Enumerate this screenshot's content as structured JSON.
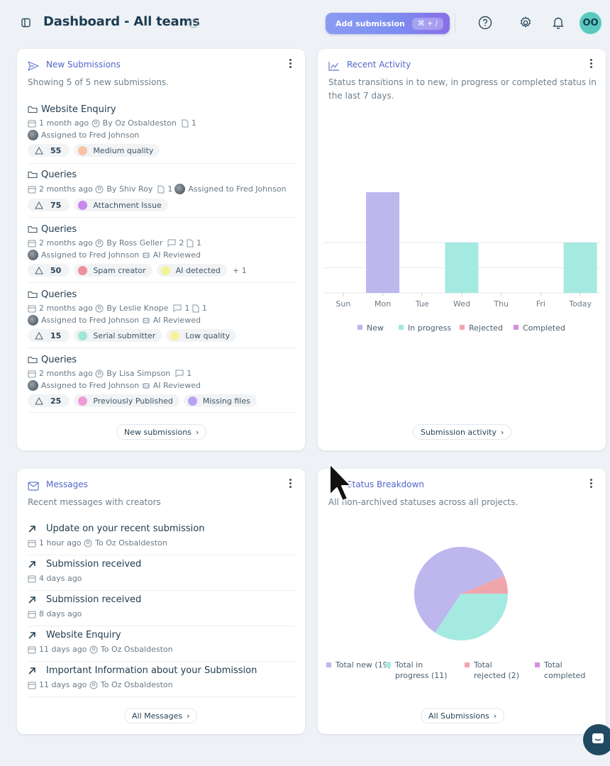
{
  "header": {
    "title": "Dashboard - All teams",
    "add_label": "Add submission",
    "add_shortcut": "⌘ + /",
    "avatar_initials": "OO"
  },
  "new_submissions": {
    "title": "New Submissions",
    "subtitle": "Showing 5 of 5 new submissions.",
    "footer": "New submissions",
    "items": [
      {
        "title": "Website Enquiry",
        "time": "1 month ago",
        "by": "By Oz Osbaldeston",
        "files": "1",
        "assigned": "Assigned to Fred Johnson",
        "score": "55",
        "chips": [
          "Medium quality"
        ]
      },
      {
        "title": "Queries",
        "time": "2 months ago",
        "by": "By Shiv Roy",
        "files": "1",
        "assigned": "Assigned to Fred Johnson",
        "score": "75",
        "chips": [
          "Attachment Issue"
        ]
      },
      {
        "title": "Queries",
        "time": "2 months ago",
        "by": "By Ross Geller",
        "comments": "2",
        "files": "1",
        "assigned": "Assigned to Fred Johnson",
        "ai": "AI Reviewed",
        "score": "50",
        "chips": [
          "Spam creator",
          "AI detected"
        ],
        "more": "+ 1"
      },
      {
        "title": "Queries",
        "time": "2 months ago",
        "by": "By Leslie Knope",
        "comments": "1",
        "files": "1",
        "assigned": "Assigned to Fred Johnson",
        "ai": "AI Reviewed",
        "score": "15",
        "chips": [
          "Serial submitter",
          "Low quality"
        ]
      },
      {
        "title": "Queries",
        "time": "2 months ago",
        "by": "By Lisa Simpson",
        "comments": "1",
        "assigned": "Assigned to Fred Johnson",
        "ai": "AI Reviewed",
        "score": "25",
        "chips": [
          "Previously Published",
          "Missing files"
        ]
      }
    ]
  },
  "recent_activity": {
    "title": "Recent Activity",
    "subtitle": "Status transitions in to new, in progress or completed status in the last 7 days.",
    "footer": "Submission activity"
  },
  "chart_data": [
    {
      "type": "bar",
      "categories": [
        "Sun",
        "Mon",
        "Tue",
        "Wed",
        "Thu",
        "Fri",
        "Today"
      ],
      "series": [
        {
          "name": "New",
          "values": [
            0,
            2,
            0,
            0,
            0,
            0,
            0
          ],
          "color": "#bdb7ee"
        },
        {
          "name": "In progress",
          "values": [
            0,
            0,
            0,
            1,
            0,
            0,
            1
          ],
          "color": "#a4eae0"
        },
        {
          "name": "Rejected",
          "values": [
            0,
            0,
            0,
            0,
            0,
            0,
            0
          ],
          "color": "#f0a5ad"
        },
        {
          "name": "Completed",
          "values": [
            0,
            0,
            0,
            0,
            0,
            0,
            0
          ],
          "color": "#d68fe0"
        }
      ],
      "ylim": [
        0,
        2
      ],
      "grid": true,
      "legend": "bottom"
    },
    {
      "type": "pie",
      "title": "Status Breakdown",
      "labels": [
        "Total new (19)",
        "Total in progress (11)",
        "Total rejected (2)",
        "Total completed"
      ],
      "values": [
        19,
        11,
        2,
        0
      ],
      "colors": [
        "#bdb7ee",
        "#a4eae0",
        "#f0a5ad",
        "#d68fe0"
      ],
      "legend": "bottom"
    }
  ],
  "messages": {
    "title": "Messages",
    "subtitle": "Recent messages with creators",
    "footer": "All Messages",
    "items": [
      {
        "title": "Update on your recent submission",
        "time": "1 hour ago",
        "to": "To Oz Osbaldeston"
      },
      {
        "title": "Submission received",
        "time": "4 days ago"
      },
      {
        "title": "Submission received",
        "time": "8 days ago"
      },
      {
        "title": "Website Enquiry",
        "time": "11 days ago",
        "to": "To Oz Osbaldeston"
      },
      {
        "title": "Important Information about your Submission",
        "time": "11 days ago",
        "to": "To Oz Osbaldeston"
      }
    ]
  },
  "status_breakdown": {
    "title": "Status Breakdown",
    "subtitle": "All non-archived statuses across all projects.",
    "footer": "All Submissions"
  },
  "colors": {
    "accent": "#5266c8",
    "chip_orange": "#f7c3a3",
    "chip_purple": "#c987ef",
    "chip_red": "#ef8f9a",
    "chip_yellow": "#f4f39a",
    "chip_teal": "#9fe6d8",
    "chip_pink": "#ef9bd6",
    "chip_violet": "#b8a2f5"
  }
}
